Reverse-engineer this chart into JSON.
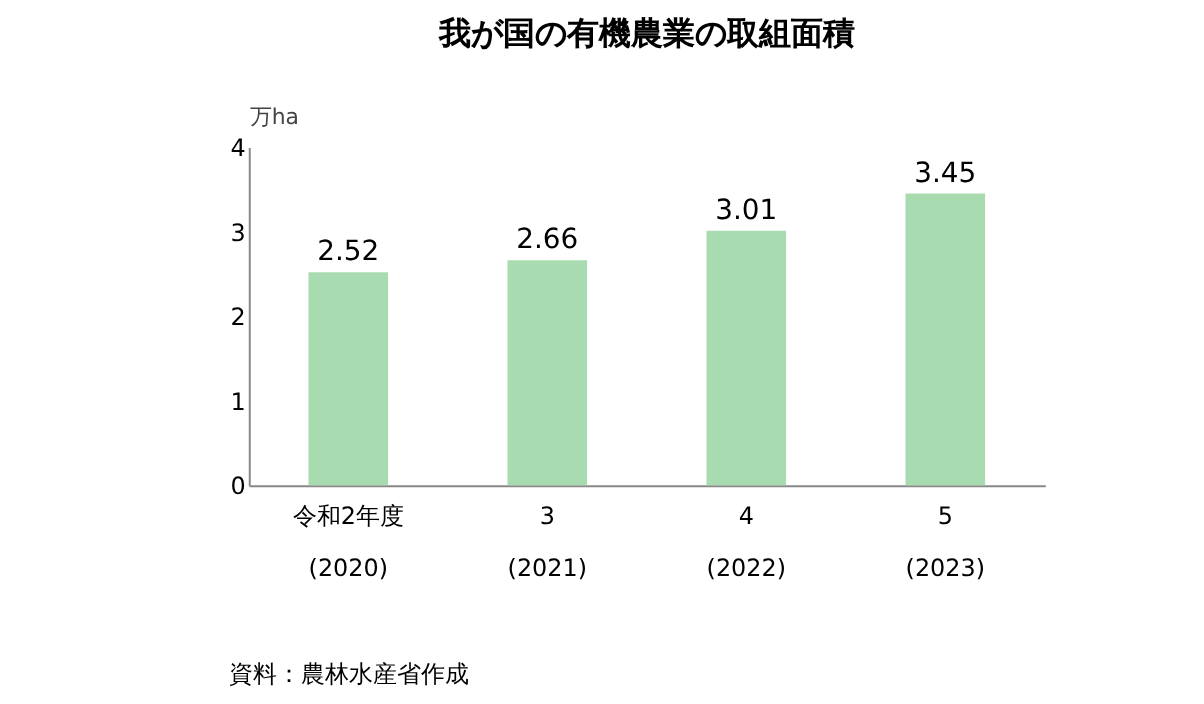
{
  "chart_data": {
    "type": "bar",
    "title": "我が国の有機農業の取組面積",
    "ylabel": "万ha",
    "categories": [
      "令和2年度\n(2020)",
      "3\n(2021)",
      "4\n(2022)",
      "5\n(2023)"
    ],
    "values": [
      2.52,
      2.66,
      3.01,
      3.45
    ],
    "color": "#a8dcb0",
    "ylim": [
      0,
      4
    ],
    "yticks": [
      0,
      1,
      2,
      3,
      4
    ],
    "grid": false,
    "data_labels": true,
    "annotations": [
      "資料：農林水産省作成"
    ]
  }
}
